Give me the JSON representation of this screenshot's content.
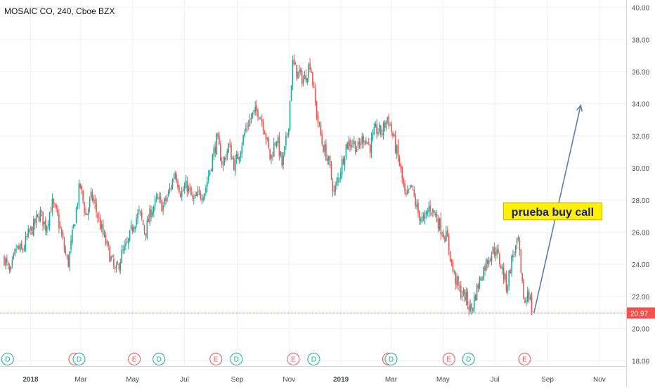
{
  "chart_data": {
    "type": "candlestick",
    "title": "MOSAIC CO, 240, Cboe BZX",
    "y_axis": {
      "range": [
        17.4,
        40.2
      ],
      "ticks": [
        "18.00",
        "20.00",
        "22.00",
        "24.00",
        "26.00",
        "28.00",
        "30.00",
        "32.00",
        "34.00",
        "36.00",
        "38.00",
        "40.00"
      ]
    },
    "x_axis": {
      "ticks": [
        "2018",
        "Mar",
        "May",
        "Jul",
        "Sep",
        "Nov",
        "2019",
        "Mar",
        "May",
        "Jul",
        "Sep",
        "Nov"
      ],
      "bold_ticks": [
        "2018",
        "2019"
      ]
    },
    "grid": true,
    "price_path": [
      [
        "2017-12-01",
        24.4
      ],
      [
        "2017-12-08",
        23.3
      ],
      [
        "2017-12-15",
        25.0
      ],
      [
        "2017-12-22",
        24.8
      ],
      [
        "2017-12-29",
        25.8
      ],
      [
        "2018-01-05",
        26.4
      ],
      [
        "2018-01-12",
        27.2
      ],
      [
        "2018-01-19",
        26.3
      ],
      [
        "2018-01-26",
        27.8
      ],
      [
        "2018-02-02",
        26.9
      ],
      [
        "2018-02-09",
        25.1
      ],
      [
        "2018-02-14",
        24.0
      ],
      [
        "2018-02-21",
        26.4
      ],
      [
        "2018-02-28",
        29.0
      ],
      [
        "2018-03-07",
        27.0
      ],
      [
        "2018-03-14",
        28.3
      ],
      [
        "2018-03-21",
        27.0
      ],
      [
        "2018-03-28",
        25.7
      ],
      [
        "2018-04-04",
        24.6
      ],
      [
        "2018-04-11",
        23.4
      ],
      [
        "2018-04-18",
        24.6
      ],
      [
        "2018-04-25",
        25.2
      ],
      [
        "2018-05-02",
        26.6
      ],
      [
        "2018-05-09",
        27.2
      ],
      [
        "2018-05-16",
        26.0
      ],
      [
        "2018-05-23",
        27.4
      ],
      [
        "2018-05-30",
        28.0
      ],
      [
        "2018-06-06",
        27.6
      ],
      [
        "2018-06-13",
        28.5
      ],
      [
        "2018-06-20",
        29.8
      ],
      [
        "2018-06-27",
        28.4
      ],
      [
        "2018-07-04",
        28.9
      ],
      [
        "2018-07-11",
        27.9
      ],
      [
        "2018-07-18",
        28.3
      ],
      [
        "2018-07-25",
        28.6
      ],
      [
        "2018-08-01",
        30.2
      ],
      [
        "2018-08-08",
        31.8
      ],
      [
        "2018-08-15",
        30.2
      ],
      [
        "2018-08-22",
        31.4
      ],
      [
        "2018-08-29",
        30.1
      ],
      [
        "2018-09-05",
        31.3
      ],
      [
        "2018-09-12",
        32.6
      ],
      [
        "2018-09-19",
        33.3
      ],
      [
        "2018-09-26",
        33.6
      ],
      [
        "2018-10-03",
        32.5
      ],
      [
        "2018-10-10",
        30.5
      ],
      [
        "2018-10-17",
        32.0
      ],
      [
        "2018-10-24",
        30.1
      ],
      [
        "2018-10-31",
        32.5
      ],
      [
        "2018-11-05",
        36.5
      ],
      [
        "2018-11-12",
        35.8
      ],
      [
        "2018-11-19",
        35.5
      ],
      [
        "2018-11-26",
        36.6
      ],
      [
        "2018-12-03",
        33.5
      ],
      [
        "2018-12-10",
        31.5
      ],
      [
        "2018-12-17",
        30.5
      ],
      [
        "2018-12-24",
        28.4
      ],
      [
        "2018-12-31",
        29.8
      ],
      [
        "2019-01-07",
        31.4
      ],
      [
        "2019-01-14",
        31.7
      ],
      [
        "2019-01-21",
        31.2
      ],
      [
        "2019-01-28",
        32.0
      ],
      [
        "2019-02-04",
        31.3
      ],
      [
        "2019-02-11",
        32.4
      ],
      [
        "2019-02-18",
        32.2
      ],
      [
        "2019-02-25",
        33.2
      ],
      [
        "2019-03-04",
        31.8
      ],
      [
        "2019-03-11",
        30.2
      ],
      [
        "2019-03-18",
        28.0
      ],
      [
        "2019-03-25",
        28.8
      ],
      [
        "2019-04-01",
        27.3
      ],
      [
        "2019-04-08",
        26.6
      ],
      [
        "2019-04-15",
        27.6
      ],
      [
        "2019-04-22",
        27.1
      ],
      [
        "2019-04-29",
        26.2
      ],
      [
        "2019-05-06",
        25.6
      ],
      [
        "2019-05-13",
        23.5
      ],
      [
        "2019-05-20",
        22.4
      ],
      [
        "2019-05-27",
        22.0
      ],
      [
        "2019-06-03",
        21.1
      ],
      [
        "2019-06-10",
        22.5
      ],
      [
        "2019-06-17",
        23.6
      ],
      [
        "2019-06-24",
        24.5
      ],
      [
        "2019-07-01",
        25.0
      ],
      [
        "2019-07-08",
        24.0
      ],
      [
        "2019-07-15",
        22.6
      ],
      [
        "2019-07-22",
        24.6
      ],
      [
        "2019-07-29",
        25.4
      ],
      [
        "2019-08-01",
        23.0
      ],
      [
        "2019-08-06",
        21.4
      ],
      [
        "2019-08-09",
        22.6
      ],
      [
        "2019-08-14",
        20.97
      ]
    ],
    "current_price": {
      "value": 20.97,
      "label": "20.97"
    },
    "arrow": {
      "from": [
        "2019-08-16",
        20.97
      ],
      "to": [
        "2019-10-10",
        33.9
      ]
    },
    "annotation": {
      "text": "prueba buy call",
      "x": "2019-09-07",
      "y": 27.3
    },
    "events": [
      {
        "type": "D",
        "date": "2017-12-05"
      },
      {
        "type": "E",
        "date": "2018-02-22"
      },
      {
        "type": "D",
        "date": "2018-02-27"
      },
      {
        "type": "E",
        "date": "2018-05-03"
      },
      {
        "type": "D",
        "date": "2018-06-01"
      },
      {
        "type": "E",
        "date": "2018-08-07"
      },
      {
        "type": "D",
        "date": "2018-08-31"
      },
      {
        "type": "E",
        "date": "2018-11-06"
      },
      {
        "type": "D",
        "date": "2018-11-30"
      },
      {
        "type": "E",
        "date": "2019-02-26"
      },
      {
        "type": "D",
        "date": "2019-03-01"
      },
      {
        "type": "E",
        "date": "2019-05-08"
      },
      {
        "type": "D",
        "date": "2019-05-31"
      },
      {
        "type": "E",
        "date": "2019-08-05"
      }
    ],
    "colors": {
      "up": "#26a69a",
      "down": "#ef5350",
      "grid": "#eef0f3",
      "arrow": "#5b7fa6",
      "price_line": "#ef5350",
      "annotation_bg": "#fff200",
      "annotation_border": "#c8b400",
      "annotation_text": "#1a1a8c",
      "event_D": "#26a69a",
      "event_E": "#ef5350",
      "axis_text": "#4a4e57"
    }
  }
}
